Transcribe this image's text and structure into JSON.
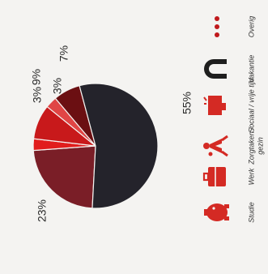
{
  "chart_data": {
    "type": "pie",
    "orientation_note": "",
    "title": "",
    "slices": [
      {
        "label": "Studie",
        "value": 23,
        "value_label": "23%",
        "color": "#7a1e27"
      },
      {
        "label": "Werk",
        "value": 3,
        "value_label": "3%",
        "color": "#e11d1d"
      },
      {
        "label": "Zorgtaken / gezin",
        "value": 9,
        "value_label": "9%",
        "color": "#c8191b"
      },
      {
        "label": "Sociaal / vrije tijd",
        "value": 3,
        "value_label": "3%",
        "color": "#e04545"
      },
      {
        "label": "Vakantie",
        "value": 7,
        "value_label": "7%",
        "color": "#6b0f12"
      },
      {
        "label": "Overig",
        "value": 55,
        "value_label": "55%",
        "color": "#24232b"
      }
    ],
    "legend": {
      "placement": "bottom",
      "items": [
        {
          "label": "Studie",
          "icon": "piggy-bank-icon",
          "color": "#d42a24"
        },
        {
          "label": "Werk",
          "icon": "briefcase-icon",
          "color": "#d42a24"
        },
        {
          "label": "Zorgtaken /\ngezin",
          "label_rot": "Zorgtaken gezin",
          "icon": "family-icon",
          "color": "#d42a24"
        },
        {
          "label": "Sociaal / vrije tijd",
          "label_rot": "Sociaal vrije tijd",
          "icon": "party-icon",
          "color": "#d42a24"
        },
        {
          "label": "Vakantie",
          "icon": "horseshoe-icon",
          "color": "#1e1e1e"
        },
        {
          "label": "Overig",
          "icon": "dots-icon",
          "color": "#c0191c"
        }
      ]
    }
  }
}
